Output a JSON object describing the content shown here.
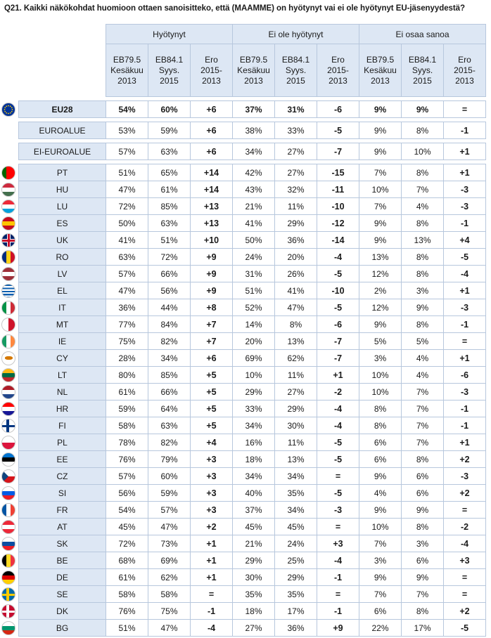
{
  "question": "Q21. Kaikki näkökohdat huomioon ottaen sanoisitteko, että (MAAMME) on hyötynyt vai ei ole hyötynyt EU-jäsenyydestä?",
  "groups": [
    "Hyötynyt",
    "Ei ole hyötynyt",
    "Ei osaa sanoa"
  ],
  "subheaders": [
    "EB79.5\nKesäkuu\n2013",
    "EB84.1\nSyys.\n2015",
    "Ero\n2015-\n2013"
  ],
  "eu": {
    "label": "EU28",
    "values": [
      "54%",
      "60%",
      "+6",
      "37%",
      "31%",
      "-6",
      "9%",
      "9%",
      "="
    ],
    "flag": [
      "#003399",
      "#003399",
      "#003399"
    ]
  },
  "zones": [
    {
      "label": "EUROALUE",
      "values": [
        "53%",
        "59%",
        "+6",
        "38%",
        "33%",
        "-5",
        "9%",
        "8%",
        "-1"
      ]
    },
    {
      "label": "EI-EUROALUE",
      "values": [
        "57%",
        "63%",
        "+6",
        "34%",
        "27%",
        "-7",
        "9%",
        "10%",
        "+1"
      ]
    }
  ],
  "countries": [
    {
      "label": "PT",
      "values": [
        "51%",
        "65%",
        "+14",
        "42%",
        "27%",
        "-15",
        "7%",
        "8%",
        "+1"
      ],
      "flag": [
        "#006600",
        "#ff0000",
        "#ff0000"
      ]
    },
    {
      "label": "HU",
      "values": [
        "47%",
        "61%",
        "+14",
        "43%",
        "32%",
        "-11",
        "10%",
        "7%",
        "-3"
      ],
      "flag": [
        "#cd2a3e",
        "#ffffff",
        "#436f4d"
      ]
    },
    {
      "label": "LU",
      "values": [
        "72%",
        "85%",
        "+13",
        "21%",
        "11%",
        "-10",
        "7%",
        "4%",
        "-3"
      ],
      "flag": [
        "#ed2939",
        "#ffffff",
        "#00a1de"
      ]
    },
    {
      "label": "ES",
      "values": [
        "50%",
        "63%",
        "+13",
        "41%",
        "29%",
        "-12",
        "9%",
        "8%",
        "-1"
      ],
      "flag": [
        "#c60b1e",
        "#ffc400",
        "#c60b1e"
      ]
    },
    {
      "label": "UK",
      "values": [
        "41%",
        "51%",
        "+10",
        "50%",
        "36%",
        "-14",
        "9%",
        "13%",
        "+4"
      ],
      "flag": [
        "#012169",
        "#c8102e",
        "#012169"
      ]
    },
    {
      "label": "RO",
      "values": [
        "63%",
        "72%",
        "+9",
        "24%",
        "20%",
        "-4",
        "13%",
        "8%",
        "-5"
      ],
      "flag": [
        "#002b7f",
        "#fcd116",
        "#ce1126"
      ]
    },
    {
      "label": "LV",
      "values": [
        "57%",
        "66%",
        "+9",
        "31%",
        "26%",
        "-5",
        "12%",
        "8%",
        "-4"
      ],
      "flag": [
        "#9e3039",
        "#ffffff",
        "#9e3039"
      ]
    },
    {
      "label": "EL",
      "values": [
        "47%",
        "56%",
        "+9",
        "51%",
        "41%",
        "-10",
        "2%",
        "3%",
        "+1"
      ],
      "flag": [
        "#0d5eaf",
        "#ffffff",
        "#0d5eaf"
      ]
    },
    {
      "label": "IT",
      "values": [
        "36%",
        "44%",
        "+8",
        "52%",
        "47%",
        "-5",
        "12%",
        "9%",
        "-3"
      ],
      "flag": [
        "#009246",
        "#ffffff",
        "#ce2b37"
      ]
    },
    {
      "label": "MT",
      "values": [
        "77%",
        "84%",
        "+7",
        "14%",
        "8%",
        "-6",
        "9%",
        "8%",
        "-1"
      ],
      "flag": [
        "#ffffff",
        "#ffffff",
        "#cf142b"
      ]
    },
    {
      "label": "IE",
      "values": [
        "75%",
        "82%",
        "+7",
        "20%",
        "13%",
        "-7",
        "5%",
        "5%",
        "="
      ],
      "flag": [
        "#169b62",
        "#ffffff",
        "#ff883e"
      ]
    },
    {
      "label": "CY",
      "values": [
        "28%",
        "34%",
        "+6",
        "69%",
        "62%",
        "-7",
        "3%",
        "4%",
        "+1"
      ],
      "flag": [
        "#ffffff",
        "#d57800",
        "#ffffff"
      ]
    },
    {
      "label": "LT",
      "values": [
        "80%",
        "85%",
        "+5",
        "10%",
        "11%",
        "+1",
        "10%",
        "4%",
        "-6"
      ],
      "flag": [
        "#fdb913",
        "#006a44",
        "#c1272d"
      ]
    },
    {
      "label": "NL",
      "values": [
        "61%",
        "66%",
        "+5",
        "29%",
        "27%",
        "-2",
        "10%",
        "7%",
        "-3"
      ],
      "flag": [
        "#ae1c28",
        "#ffffff",
        "#21468b"
      ]
    },
    {
      "label": "HR",
      "values": [
        "59%",
        "64%",
        "+5",
        "33%",
        "29%",
        "-4",
        "8%",
        "7%",
        "-1"
      ],
      "flag": [
        "#ff0000",
        "#ffffff",
        "#171796"
      ]
    },
    {
      "label": "FI",
      "values": [
        "58%",
        "63%",
        "+5",
        "34%",
        "30%",
        "-4",
        "8%",
        "7%",
        "-1"
      ],
      "flag": [
        "#ffffff",
        "#003580",
        "#ffffff"
      ]
    },
    {
      "label": "PL",
      "values": [
        "78%",
        "82%",
        "+4",
        "16%",
        "11%",
        "-5",
        "6%",
        "7%",
        "+1"
      ],
      "flag": [
        "#ffffff",
        "#ffffff",
        "#dc143c"
      ]
    },
    {
      "label": "EE",
      "values": [
        "76%",
        "79%",
        "+3",
        "18%",
        "13%",
        "-5",
        "6%",
        "8%",
        "+2"
      ],
      "flag": [
        "#0072ce",
        "#000000",
        "#ffffff"
      ]
    },
    {
      "label": "CZ",
      "values": [
        "57%",
        "60%",
        "+3",
        "34%",
        "34%",
        "=",
        "9%",
        "6%",
        "-3"
      ],
      "flag": [
        "#ffffff",
        "#11457e",
        "#d7141a"
      ]
    },
    {
      "label": "SI",
      "values": [
        "56%",
        "59%",
        "+3",
        "40%",
        "35%",
        "-5",
        "4%",
        "6%",
        "+2"
      ],
      "flag": [
        "#ffffff",
        "#005ce5",
        "#ed1c24"
      ]
    },
    {
      "label": "FR",
      "values": [
        "54%",
        "57%",
        "+3",
        "37%",
        "34%",
        "-3",
        "9%",
        "9%",
        "="
      ],
      "flag": [
        "#0055a4",
        "#ffffff",
        "#ef4135"
      ]
    },
    {
      "label": "AT",
      "values": [
        "45%",
        "47%",
        "+2",
        "45%",
        "45%",
        "=",
        "10%",
        "8%",
        "-2"
      ],
      "flag": [
        "#ed2939",
        "#ffffff",
        "#ed2939"
      ]
    },
    {
      "label": "SK",
      "values": [
        "72%",
        "73%",
        "+1",
        "21%",
        "24%",
        "+3",
        "7%",
        "3%",
        "-4"
      ],
      "flag": [
        "#ffffff",
        "#0b4ea2",
        "#ee1c25"
      ]
    },
    {
      "label": "BE",
      "values": [
        "68%",
        "69%",
        "+1",
        "29%",
        "25%",
        "-4",
        "3%",
        "6%",
        "+3"
      ],
      "flag": [
        "#000000",
        "#fdda24",
        "#ef3340"
      ]
    },
    {
      "label": "DE",
      "values": [
        "61%",
        "62%",
        "+1",
        "30%",
        "29%",
        "-1",
        "9%",
        "9%",
        "="
      ],
      "flag": [
        "#000000",
        "#dd0000",
        "#ffce00"
      ]
    },
    {
      "label": "SE",
      "values": [
        "58%",
        "58%",
        "=",
        "35%",
        "35%",
        "=",
        "7%",
        "7%",
        "="
      ],
      "flag": [
        "#006aa7",
        "#fecc00",
        "#006aa7"
      ]
    },
    {
      "label": "DK",
      "values": [
        "76%",
        "75%",
        "-1",
        "18%",
        "17%",
        "-1",
        "6%",
        "8%",
        "+2"
      ],
      "flag": [
        "#c60c30",
        "#ffffff",
        "#c60c30"
      ]
    },
    {
      "label": "BG",
      "values": [
        "51%",
        "47%",
        "-4",
        "27%",
        "36%",
        "+9",
        "22%",
        "17%",
        "-5"
      ],
      "flag": [
        "#ffffff",
        "#00966e",
        "#d62612"
      ]
    }
  ]
}
